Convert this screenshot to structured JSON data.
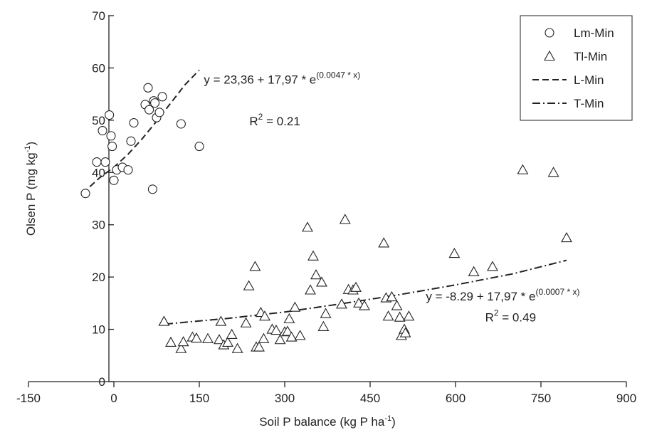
{
  "chart_data": {
    "type": "scatter",
    "xlabel": "Soil P balance (kg P ha",
    "xlabel_sup": "-1",
    "xlabel_end": ")",
    "ylabel": "Olsen P (mg kg",
    "ylabel_sup": "-1",
    "ylabel_end": ")",
    "xlim": [
      -150,
      900
    ],
    "ylim": [
      0,
      70
    ],
    "x_ticks": [
      -150,
      0,
      150,
      300,
      450,
      600,
      750,
      900
    ],
    "y_ticks": [
      0,
      10,
      20,
      30,
      40,
      50,
      60,
      70
    ],
    "grid": false,
    "legend_position": "top-right",
    "series": [
      {
        "name": "Lm-Min",
        "kind": "points",
        "marker": "circle",
        "points": [
          [
            -50,
            36
          ],
          [
            -30,
            42
          ],
          [
            -20,
            48
          ],
          [
            -15,
            42
          ],
          [
            -8,
            51
          ],
          [
            -5,
            47
          ],
          [
            -3,
            45
          ],
          [
            0,
            38.5
          ],
          [
            5,
            40.5
          ],
          [
            15,
            41
          ],
          [
            25,
            40.5
          ],
          [
            30,
            46
          ],
          [
            35,
            49.5
          ],
          [
            55,
            53
          ],
          [
            60,
            56.2
          ],
          [
            62,
            52
          ],
          [
            70,
            53.7
          ],
          [
            72,
            53.3
          ],
          [
            75,
            50.5
          ],
          [
            80,
            51.5
          ],
          [
            85,
            54.5
          ],
          [
            68,
            36.8
          ],
          [
            118,
            49.3
          ],
          [
            150,
            45
          ]
        ]
      },
      {
        "name": "Tl-Min",
        "kind": "points",
        "marker": "triangle",
        "points": [
          [
            88,
            11.5
          ],
          [
            100,
            7.5
          ],
          [
            118,
            6.3
          ],
          [
            122,
            7.6
          ],
          [
            138,
            8.5
          ],
          [
            145,
            8.3
          ],
          [
            165,
            8.2
          ],
          [
            185,
            8
          ],
          [
            188,
            11.5
          ],
          [
            193,
            7
          ],
          [
            200,
            7.5
          ],
          [
            207,
            9
          ],
          [
            217,
            6.3
          ],
          [
            232,
            11.2
          ],
          [
            237,
            18.3
          ],
          [
            248,
            22
          ],
          [
            250,
            6.6
          ],
          [
            255,
            6.6
          ],
          [
            258,
            13.2
          ],
          [
            263,
            8.2
          ],
          [
            265,
            12.5
          ],
          [
            278,
            10
          ],
          [
            285,
            9.8
          ],
          [
            292,
            8
          ],
          [
            300,
            9.5
          ],
          [
            305,
            9.6
          ],
          [
            308,
            12
          ],
          [
            312,
            8.5
          ],
          [
            318,
            14.2
          ],
          [
            327,
            8.8
          ],
          [
            340,
            29.5
          ],
          [
            345,
            17.5
          ],
          [
            350,
            24
          ],
          [
            355,
            20.4
          ],
          [
            365,
            19
          ],
          [
            368,
            10.5
          ],
          [
            372,
            13
          ],
          [
            400,
            14.8
          ],
          [
            406,
            31
          ],
          [
            412,
            17.6
          ],
          [
            420,
            17.5
          ],
          [
            425,
            18
          ],
          [
            430,
            15
          ],
          [
            440,
            14.5
          ],
          [
            474,
            26.5
          ],
          [
            478,
            16
          ],
          [
            482,
            12.5
          ],
          [
            488,
            16.2
          ],
          [
            497,
            14.5
          ],
          [
            502,
            12.3
          ],
          [
            505,
            8.8
          ],
          [
            510,
            10
          ],
          [
            512,
            9.3
          ],
          [
            518,
            12.5
          ],
          [
            598,
            24.5
          ],
          [
            632,
            21
          ],
          [
            665,
            22
          ],
          [
            718,
            40.5
          ],
          [
            772,
            40
          ],
          [
            795,
            27.5
          ]
        ]
      },
      {
        "name": "L-Min",
        "kind": "line",
        "style": "dashed",
        "points": [
          [
            -55,
            36
          ],
          [
            -25,
            39
          ],
          [
            0,
            41
          ],
          [
            25,
            43.5
          ],
          [
            50,
            46.5
          ],
          [
            75,
            49.8
          ],
          [
            100,
            53.3
          ],
          [
            125,
            56.8
          ],
          [
            150,
            59.6
          ]
        ]
      },
      {
        "name": "T-Min",
        "kind": "line",
        "style": "dash-dot",
        "points": [
          [
            90,
            11
          ],
          [
            200,
            12.1
          ],
          [
            300,
            13.3
          ],
          [
            400,
            14.9
          ],
          [
            500,
            16.6
          ],
          [
            600,
            18.5
          ],
          [
            700,
            20.6
          ],
          [
            795,
            23.2
          ]
        ]
      }
    ],
    "annotations": [
      {
        "id": "eq1",
        "text": "y = 23,36 + 17,97 * e",
        "sup": "(0.0047 * x)",
        "x": 158,
        "y": 57
      },
      {
        "id": "r1",
        "text": "R",
        "sup": "2",
        "after": " = 0.21",
        "x": 238,
        "y": 49
      },
      {
        "id": "eq2",
        "text": "y = -8.29 + 17,97 * e",
        "sup": "(0.0007 * x)",
        "x": 548,
        "y": 15.5
      },
      {
        "id": "r2",
        "text": "R",
        "sup": "2",
        "after": " = 0.49",
        "x": 652,
        "y": 11.5
      }
    ]
  }
}
